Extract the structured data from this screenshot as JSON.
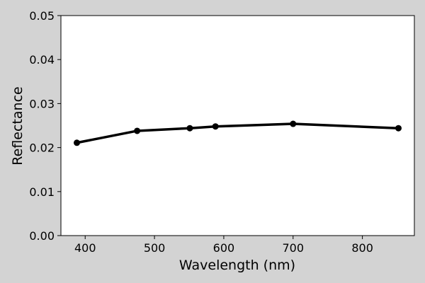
{
  "chart_data": {
    "type": "line",
    "title": "",
    "xlabel": "Wavelength (nm)",
    "ylabel": "Reflectance",
    "xlim": [
      365,
      875
    ],
    "ylim": [
      0.0,
      0.05
    ],
    "x_ticks": [
      400,
      500,
      600,
      700,
      800
    ],
    "x_tick_labels": [
      "400",
      "500",
      "600",
      "700",
      "800"
    ],
    "y_ticks": [
      0.0,
      0.01,
      0.02,
      0.03,
      0.04,
      0.05
    ],
    "y_tick_labels": [
      "0.00",
      "0.01",
      "0.02",
      "0.03",
      "0.04",
      "0.05"
    ],
    "grid": false,
    "legend": "none",
    "series": [
      {
        "color": "#000000",
        "marker": "circle",
        "x": [
          388,
          475,
          551,
          588,
          700,
          852
        ],
        "y": [
          0.0211,
          0.0238,
          0.0244,
          0.0248,
          0.0254,
          0.0244
        ]
      }
    ]
  },
  "colors": {
    "figure_background": "#d3d3d3",
    "plot_background": "#ffffff",
    "line": "#000000"
  }
}
